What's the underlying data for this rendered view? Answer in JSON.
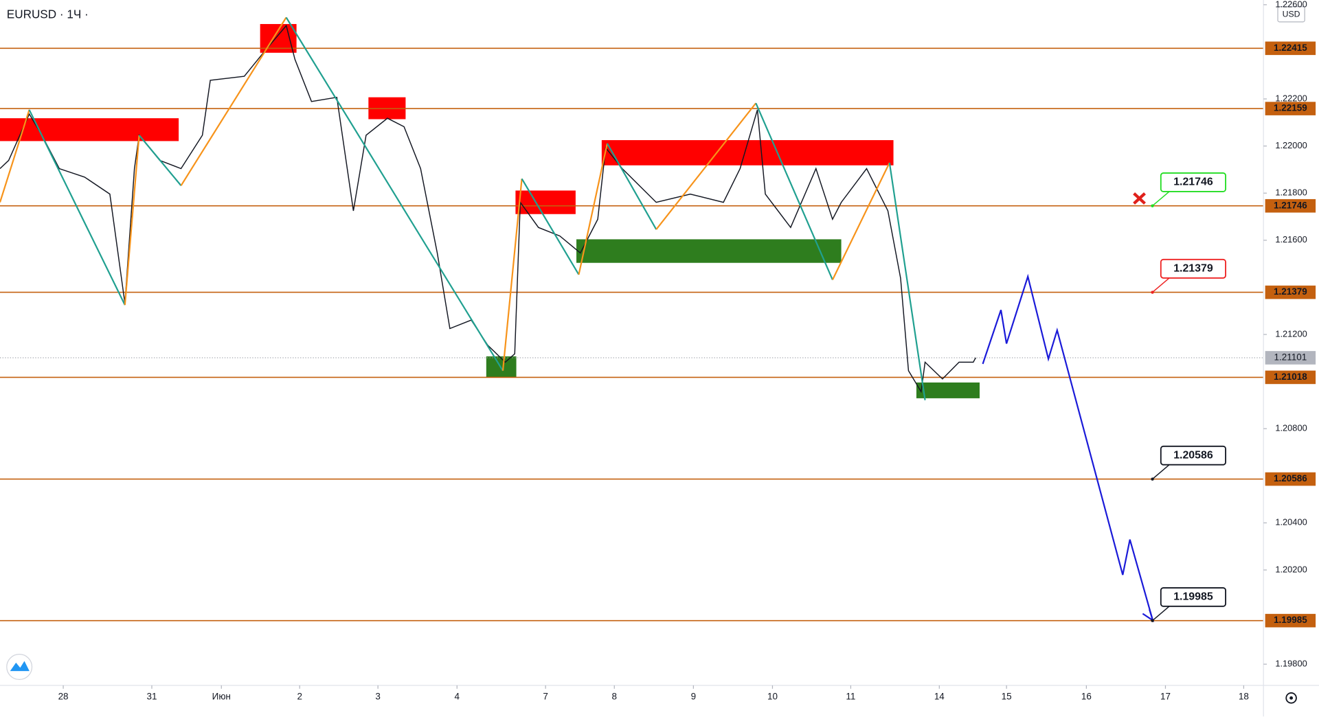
{
  "chart_data": {
    "type": "line",
    "title": "EURUSD · 1Ч ·",
    "currency": "USD",
    "xlim": [
      -0.8,
      15.18
    ],
    "ylim": [
      1.1971,
      1.2262
    ],
    "xticks": [
      {
        "value": 0,
        "label": "28"
      },
      {
        "value": 1.12,
        "label": "31"
      },
      {
        "value": 2,
        "label": "Июн"
      },
      {
        "value": 2.99,
        "label": "2"
      },
      {
        "value": 3.98,
        "label": "3"
      },
      {
        "value": 4.98,
        "label": "4"
      },
      {
        "value": 6.1,
        "label": "7"
      },
      {
        "value": 6.97,
        "label": "8"
      },
      {
        "value": 7.97,
        "label": "9"
      },
      {
        "value": 8.97,
        "label": "10"
      },
      {
        "value": 9.96,
        "label": "11"
      },
      {
        "value": 11.08,
        "label": "14"
      },
      {
        "value": 11.93,
        "label": "15"
      },
      {
        "value": 12.94,
        "label": "16"
      },
      {
        "value": 13.94,
        "label": "17"
      },
      {
        "value": 14.93,
        "label": "18"
      }
    ],
    "yticks": [
      {
        "value": 1.226,
        "label": "1.22600"
      },
      {
        "value": 1.222,
        "label": "1.22200"
      },
      {
        "value": 1.22,
        "label": "1.22000"
      },
      {
        "value": 1.218,
        "label": "1.21800"
      },
      {
        "value": 1.216,
        "label": "1.21600"
      },
      {
        "value": 1.212,
        "label": "1.21200"
      },
      {
        "value": 1.208,
        "label": "1.20800"
      },
      {
        "value": 1.204,
        "label": "1.20400"
      },
      {
        "value": 1.202,
        "label": "1.20200"
      },
      {
        "value": 1.198,
        "label": "1.19800"
      }
    ],
    "x": [
      -0.8,
      -0.69,
      -0.43,
      -0.27,
      -0.05,
      0.27,
      0.59,
      0.78,
      0.9,
      0.96,
      1.22,
      1.49,
      1.76,
      1.86,
      2.29,
      2.55,
      2.82,
      2.93,
      3.14,
      3.46,
      3.67,
      3.83,
      4.1,
      4.31,
      4.52,
      4.73,
      4.89,
      5.16,
      5.37,
      5.59,
      5.71,
      5.78,
      6.01,
      6.28,
      6.54,
      6.76,
      6.86,
      7.07,
      7.5,
      7.93,
      8.35,
      8.56,
      8.78,
      8.88,
      9.2,
      9.52,
      9.73,
      9.84,
      10.16,
      10.43,
      10.59,
      10.69,
      10.85,
      10.9,
      11.12,
      11.33,
      11.51,
      11.54
    ],
    "series": [
      {
        "color": "#131722",
        "values": [
          1.21904,
          1.21939,
          1.22136,
          1.22046,
          1.21904,
          1.21868,
          1.21796,
          1.21332,
          1.21904,
          1.22046,
          1.21939,
          1.21904,
          1.22046,
          1.22279,
          1.22296,
          1.22404,
          1.22511,
          1.22368,
          1.22189,
          1.22207,
          1.21725,
          1.22046,
          1.22118,
          1.22082,
          1.21904,
          1.21546,
          1.21225,
          1.21261,
          1.21154,
          1.21082,
          1.21118,
          1.21761,
          1.21654,
          1.21618,
          1.21546,
          1.21689,
          1.21993,
          1.21904,
          1.21761,
          1.21796,
          1.21761,
          1.21904,
          1.22154,
          1.21796,
          1.21654,
          1.21904,
          1.21689,
          1.21761,
          1.21904,
          1.21725,
          1.21439,
          1.21046,
          1.20957,
          1.21082,
          1.21011,
          1.21082,
          1.21082,
          1.21101
        ]
      }
    ],
    "levels": {
      "color": "#c4600f",
      "values": [
        1.22415,
        1.22159,
        1.21746,
        1.21379,
        1.21018,
        1.20586,
        1.19985
      ]
    },
    "current_price": 1.21101,
    "zones": [
      {
        "color": "#ff0000",
        "x": [
          -0.8,
          1.46
        ],
        "y": [
          1.22021,
          1.22118
        ]
      },
      {
        "color": "#ff0000",
        "x": [
          2.49,
          2.95
        ],
        "y": [
          1.22396,
          1.22518
        ]
      },
      {
        "color": "#ff0000",
        "x": [
          3.86,
          4.33
        ],
        "y": [
          1.22114,
          1.22207
        ]
      },
      {
        "color": "#ff0000",
        "x": [
          5.72,
          6.48
        ],
        "y": [
          1.21711,
          1.21811
        ]
      },
      {
        "color": "#ff0000",
        "x": [
          6.81,
          10.5
        ],
        "y": [
          1.21918,
          1.22025
        ]
      },
      {
        "color": "#2e7d1e",
        "x": [
          5.35,
          5.73
        ],
        "y": [
          1.21018,
          1.21107
        ]
      },
      {
        "color": "#2e7d1e",
        "x": [
          6.49,
          9.84
        ],
        "y": [
          1.21504,
          1.21604
        ]
      },
      {
        "color": "#2e7d1e",
        "x": [
          10.79,
          11.59
        ],
        "y": [
          1.20929,
          1.20996
        ]
      }
    ],
    "zigzag": {
      "up_color": "#f7931a",
      "down_color": "#20a090",
      "x": [
        -0.8,
        -0.43,
        0.78,
        0.96,
        1.49,
        2.82,
        5.56,
        5.8,
        6.52,
        6.88,
        7.5,
        8.76,
        9.73,
        10.45,
        10.9
      ],
      "values": [
        1.21761,
        1.22154,
        1.21325,
        1.22046,
        1.21832,
        1.22546,
        1.21046,
        1.21861,
        1.21454,
        1.22011,
        1.21646,
        1.22182,
        1.21432,
        1.21929,
        1.20921
      ]
    },
    "forecast": {
      "color": "#1a1ad8",
      "x": [
        11.63,
        11.86,
        11.93,
        12.2,
        12.46,
        12.57,
        13.4,
        13.49,
        13.78
      ],
      "values": [
        1.21075,
        1.21304,
        1.21161,
        1.21446,
        1.21096,
        1.21218,
        1.20179,
        1.20329,
        1.19986
      ]
    },
    "callouts": [
      {
        "value": 1.21746,
        "color": "#22dd22"
      },
      {
        "value": 1.21379,
        "color": "#ee2222"
      },
      {
        "value": 1.20586,
        "color": "#131722"
      },
      {
        "value": 1.19985,
        "color": "#131722"
      }
    ]
  }
}
